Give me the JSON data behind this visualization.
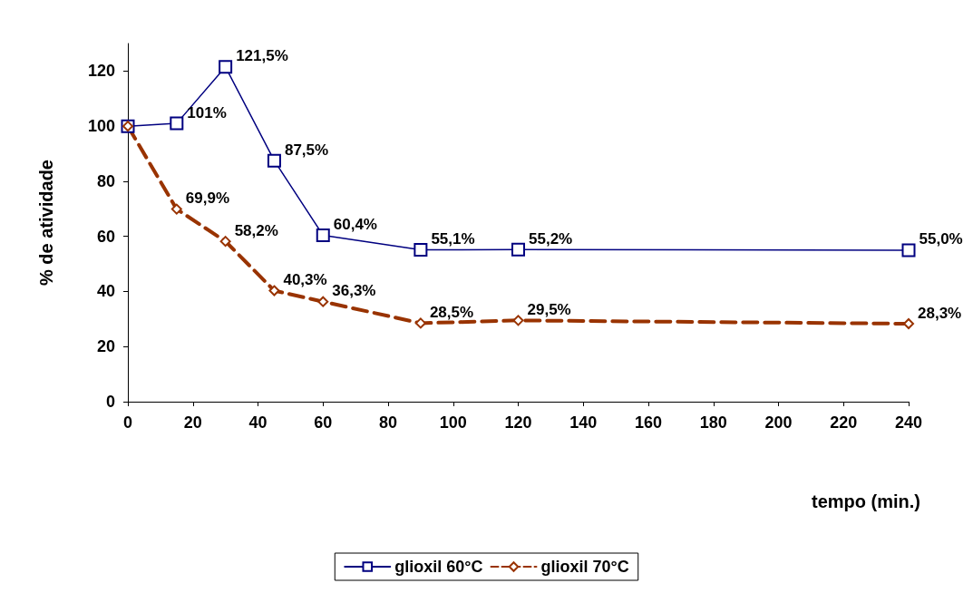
{
  "chart_data": {
    "type": "line",
    "xlabel": "tempo (min.)",
    "ylabel": "% de atividade",
    "x": [
      0,
      15,
      30,
      45,
      60,
      90,
      120,
      240
    ],
    "xlim": [
      0,
      240
    ],
    "xticks": [
      0,
      20,
      40,
      60,
      80,
      100,
      120,
      140,
      160,
      180,
      200,
      220,
      240
    ],
    "ylim": [
      0,
      130
    ],
    "yticks": [
      0,
      20,
      40,
      60,
      80,
      100,
      120
    ],
    "grid": false,
    "legend": "bottom",
    "series": [
      {
        "name": "glioxil 60°C",
        "color": "#000080",
        "marker": "square",
        "line_style": "solid",
        "values": [
          100,
          101,
          121.5,
          87.5,
          60.4,
          55.1,
          55.2,
          55.0
        ],
        "value_labels": [
          null,
          "101%",
          "121,5%",
          "87,5%",
          "60,4%",
          "55,1%",
          "55,2%",
          "55,0%"
        ]
      },
      {
        "name": "glioxil 70°C",
        "color": "#993300",
        "marker": "diamond",
        "line_style": "dashed",
        "values": [
          100,
          69.9,
          58.2,
          40.3,
          36.3,
          28.5,
          29.5,
          28.3
        ],
        "value_labels": [
          null,
          "69,9%",
          "58,2%",
          "40,3%",
          "36,3%",
          "28,5%",
          "29,5%",
          "28,3%"
        ]
      }
    ]
  }
}
